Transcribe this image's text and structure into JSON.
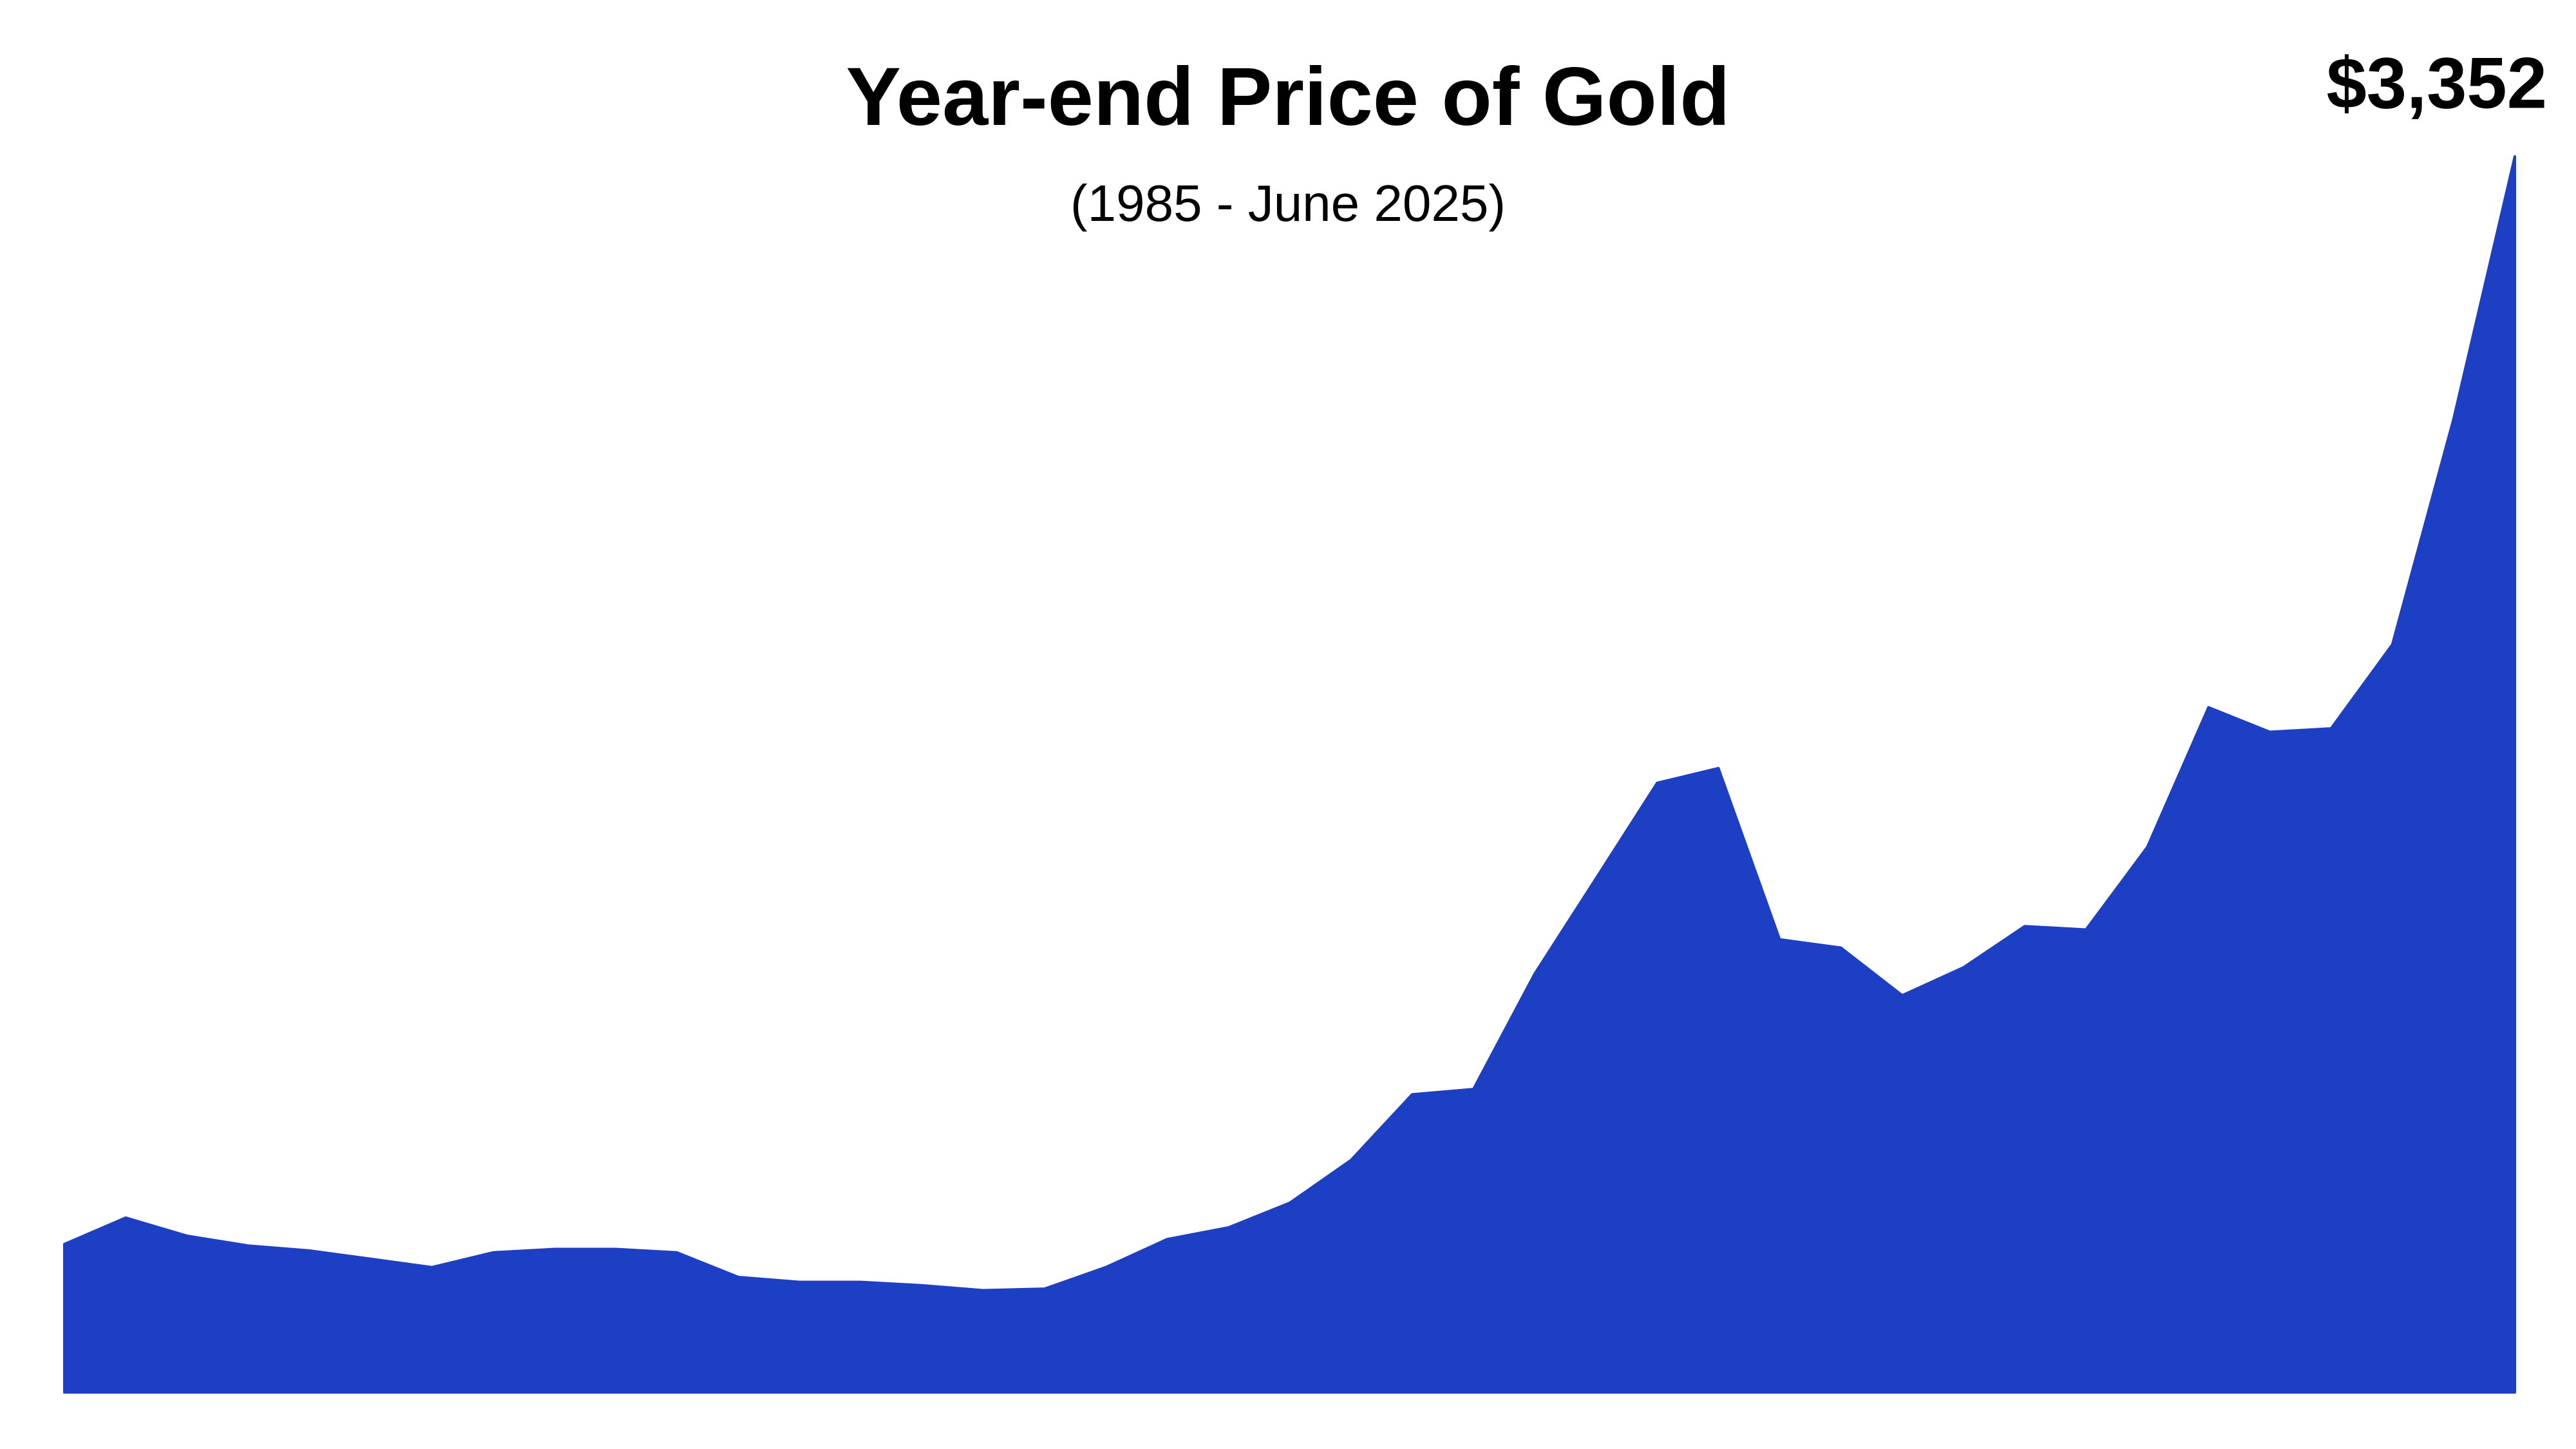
{
  "chart_data": {
    "type": "area",
    "title": "Year-end Price of Gold",
    "subtitle": "(1985 - June 2025)",
    "color": "#1c3fc4",
    "values": [
      475,
      545,
      497,
      471,
      458,
      436,
      414,
      453,
      462,
      462,
      453,
      388,
      375,
      375,
      366,
      353,
      357,
      414,
      488,
      519,
      584,
      697,
      871,
      885,
      1190,
      1442,
      1695,
      1734,
      1281,
      1259,
      1133,
      1207,
      1316,
      1307,
      1525,
      1895,
      1830,
      1839,
      2061,
      2658,
      3352
    ],
    "value_labels": [
      null,
      null,
      null,
      null,
      null,
      null,
      null,
      null,
      null,
      null,
      null,
      null,
      null,
      null,
      null,
      null,
      null,
      null,
      null,
      null,
      null,
      null,
      null,
      null,
      null,
      null,
      null,
      null,
      null,
      null,
      null,
      null,
      null,
      null,
      null,
      null,
      null,
      null,
      null,
      null,
      "$3,352"
    ],
    "ylim": [
      83,
      3352
    ]
  }
}
